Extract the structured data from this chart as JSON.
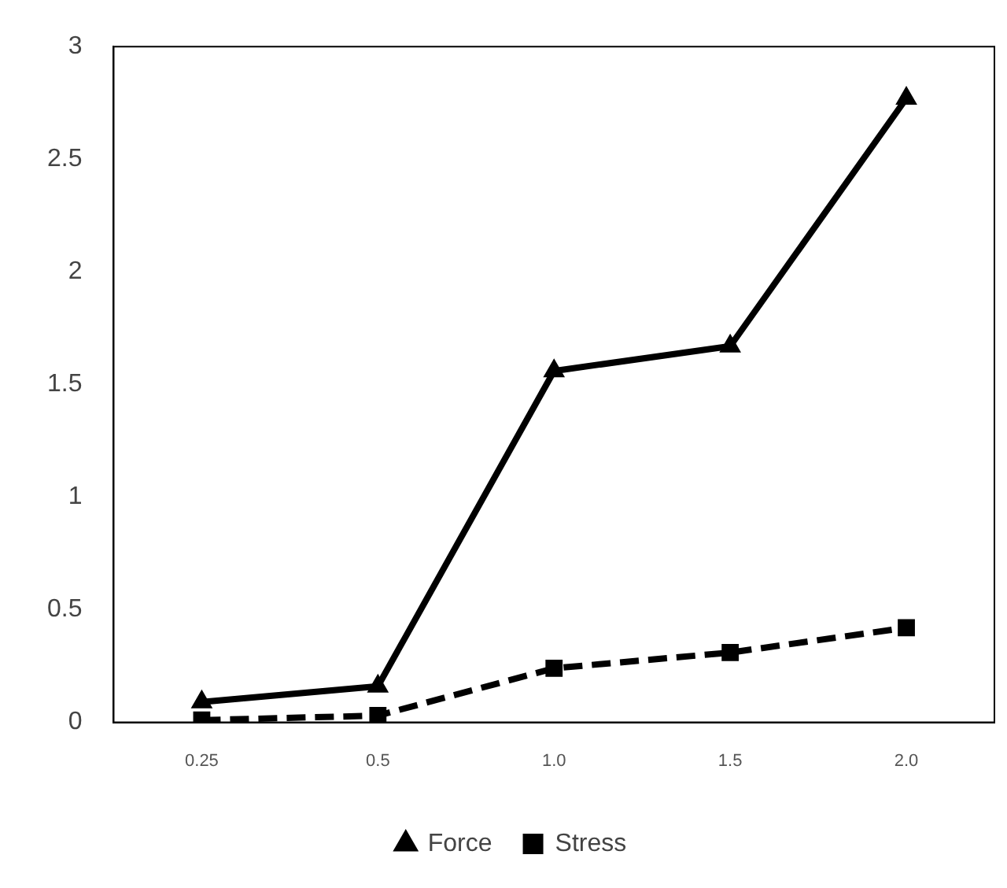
{
  "chart_data": {
    "type": "line",
    "categories": [
      "0.25",
      "0.5",
      "1.0",
      "1.5",
      "2.0"
    ],
    "series": [
      {
        "name": "Force",
        "color": "#000000",
        "values": [
          0.09,
          0.16,
          1.56,
          1.67,
          2.77
        ],
        "marker": "triangle",
        "line_style": "solid"
      },
      {
        "name": "Stress",
        "color": "#000000",
        "values": [
          0.01,
          0.03,
          0.24,
          0.31,
          0.42
        ],
        "marker": "square",
        "line_style": "dashed"
      }
    ],
    "ylim": [
      0,
      3
    ],
    "yticks": [
      0,
      0.5,
      1,
      1.5,
      2,
      2.5,
      3
    ],
    "grid": false,
    "legend": "bottom"
  }
}
